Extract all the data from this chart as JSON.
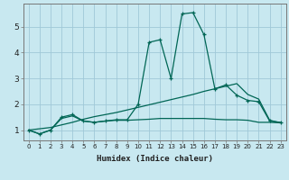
{
  "xlabel": "Humidex (Indice chaleur)",
  "bg_color": "#c8e8f0",
  "grid_color": "#a0c8d8",
  "line_color": "#006655",
  "x_data": [
    0,
    1,
    2,
    3,
    4,
    5,
    6,
    7,
    8,
    9,
    10,
    11,
    12,
    13,
    14,
    15,
    16,
    17,
    18,
    19,
    20,
    21,
    22,
    23
  ],
  "line1": [
    1.0,
    0.85,
    1.0,
    1.5,
    1.6,
    1.35,
    1.3,
    1.35,
    1.4,
    1.4,
    2.0,
    4.4,
    4.5,
    3.0,
    5.5,
    5.55,
    4.7,
    2.6,
    2.75,
    2.35,
    2.15,
    2.1,
    1.35,
    1.3
  ],
  "line2": [
    1.0,
    0.85,
    1.0,
    1.45,
    1.55,
    1.35,
    1.3,
    1.35,
    1.38,
    1.38,
    1.4,
    1.42,
    1.45,
    1.45,
    1.45,
    1.45,
    1.45,
    1.42,
    1.4,
    1.4,
    1.38,
    1.3,
    1.3,
    1.28
  ],
  "line3": [
    1.0,
    1.05,
    1.1,
    1.2,
    1.3,
    1.42,
    1.52,
    1.6,
    1.68,
    1.78,
    1.88,
    1.98,
    2.08,
    2.18,
    2.28,
    2.38,
    2.5,
    2.6,
    2.7,
    2.8,
    2.38,
    2.2,
    1.38,
    1.28
  ],
  "ylim": [
    0.6,
    5.9
  ],
  "yticks": [
    1,
    2,
    3,
    4,
    5
  ],
  "xlim": [
    -0.5,
    23.5
  ],
  "figsize": [
    3.2,
    2.0
  ],
  "dpi": 100
}
